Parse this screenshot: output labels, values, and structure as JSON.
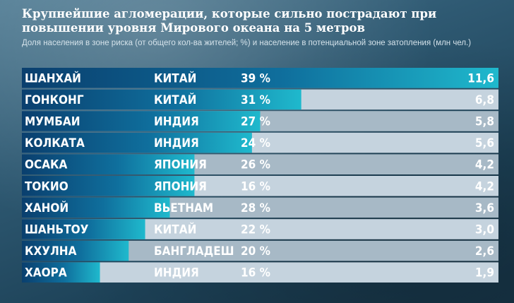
{
  "chart_data": {
    "type": "bar",
    "title": "Крупнейшие агломерации, которые сильно пострадают при повышении уровня Мирового океана на 5 метров",
    "subtitle": "Доля населения в зоне риска (от общего кол-ва жителей; %) и население в потенциальной зоне затопления (млн чел.)",
    "xlim": [
      0,
      11.6
    ],
    "rows": [
      {
        "city": "ШАНХАЙ",
        "country": "КИТАЙ",
        "share": "39 %",
        "population": 11.6,
        "population_label": "11,6"
      },
      {
        "city": "ГОНКОНГ",
        "country": "КИТАЙ",
        "share": "31 %",
        "population": 6.8,
        "population_label": "6,8"
      },
      {
        "city": "МУМБАИ",
        "country": "ИНДИЯ",
        "share": "27 %",
        "population": 5.8,
        "population_label": "5,8"
      },
      {
        "city": "КОЛКАТА",
        "country": "ИНДИЯ",
        "share": "24 %",
        "population": 5.6,
        "population_label": "5,6"
      },
      {
        "city": "ОСАКА",
        "country": "ЯПОНИЯ",
        "share": "26 %",
        "population": 4.2,
        "population_label": "4,2"
      },
      {
        "city": "ТОКИО",
        "country": "ЯПОНИЯ",
        "share": "16 %",
        "population": 4.2,
        "population_label": "4,2"
      },
      {
        "city": "ХАНОЙ",
        "country": "ВЬЕТНАМ",
        "share": "28 %",
        "population": 3.6,
        "population_label": "3,6"
      },
      {
        "city": "ШАНЬТОУ",
        "country": "КИТАЙ",
        "share": "22 %",
        "population": 3.0,
        "population_label": "3,0"
      },
      {
        "city": "КХУЛНА",
        "country": "БАНГЛАДЕШ",
        "share": "20 %",
        "population": 2.6,
        "population_label": "2,6"
      },
      {
        "city": "ХАОРА",
        "country": "ИНДИЯ",
        "share": "16 %",
        "population": 1.9,
        "population_label": "1,9"
      }
    ],
    "colors": {
      "bar_start": "#0a3f6e",
      "bar_mid": "#0f6f9d",
      "bar_end": "#1fb9cd",
      "track_light": "#c5d3de",
      "track_dark": "#a7b9c6"
    }
  }
}
